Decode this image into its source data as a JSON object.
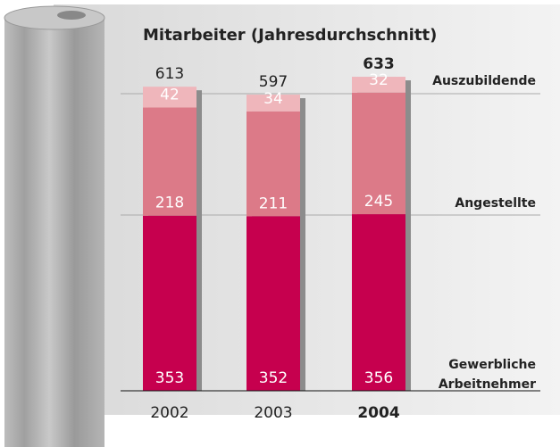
{
  "chart_data": {
    "type": "stacked-bar",
    "title": "Mitarbeiter (Jahresdurchschnitt)",
    "categories": [
      "2002",
      "2003",
      "2004"
    ],
    "series": [
      {
        "name": "Gewerbliche Arbeitnehmer",
        "color": "#c6004e",
        "values": [
          353,
          352,
          356
        ]
      },
      {
        "name": "Angestellte",
        "color": "#dc7a88",
        "values": [
          218,
          211,
          245
        ]
      },
      {
        "name": "Auszubildende",
        "color": "#efb6bb",
        "values": [
          42,
          34,
          32
        ]
      }
    ],
    "totals": [
      613,
      597,
      633
    ]
  }
}
